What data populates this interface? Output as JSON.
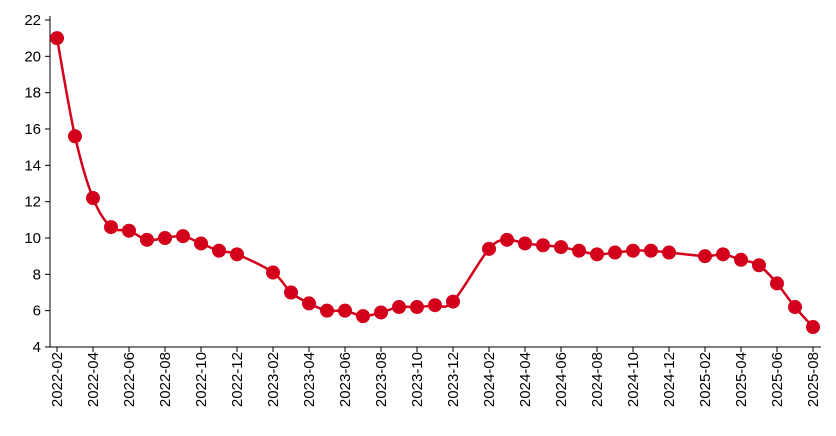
{
  "chart_data": {
    "type": "line",
    "x": [
      "2022-02",
      "2022-03",
      "2022-04",
      "2022-05",
      "2022-06",
      "2022-07",
      "2022-08",
      "2022-09",
      "2022-10",
      "2022-11",
      "2022-12",
      "2023-02",
      "2023-03",
      "2023-04",
      "2023-05",
      "2023-06",
      "2023-07",
      "2023-08",
      "2023-09",
      "2023-10",
      "2023-11",
      "2023-12",
      "2024-02",
      "2024-03",
      "2024-04",
      "2024-05",
      "2024-06",
      "2024-07",
      "2024-08",
      "2024-09",
      "2024-10",
      "2024-11",
      "2024-12",
      "2025-02",
      "2025-03",
      "2025-04",
      "2025-05",
      "2025-06",
      "2025-07",
      "2025-08"
    ],
    "series": [
      {
        "color": "#d2001a",
        "values": [
          21,
          15.6,
          12.2,
          10.6,
          10.4,
          9.9,
          10.0,
          10.1,
          9.7,
          9.3,
          9.1,
          8.1,
          7.0,
          6.4,
          6.0,
          6.0,
          5.7,
          5.9,
          6.2,
          6.2,
          6.3,
          6.5,
          9.4,
          9.9,
          9.7,
          9.6,
          9.5,
          9.3,
          9.1,
          9.2,
          9.3,
          9.3,
          9.2,
          9.0,
          9.1,
          8.8,
          8.5,
          7.5,
          6.2,
          5.1
        ]
      }
    ],
    "xlim": [
      "2022-02",
      "2025-08"
    ],
    "xticks": [
      "2022-02",
      "2022-04",
      "2022-06",
      "2022-08",
      "2022-10",
      "2022-12",
      "2023-02",
      "2023-04",
      "2023-06",
      "2023-08",
      "2023-10",
      "2023-12",
      "2024-02",
      "2024-04",
      "2024-06",
      "2024-08",
      "2024-10",
      "2024-12",
      "2025-02",
      "2025-04",
      "2025-06",
      "2025-08"
    ],
    "ylim": [
      4,
      22
    ],
    "yticks": [
      4,
      6,
      8,
      10,
      12,
      14,
      16,
      18,
      20,
      22
    ]
  }
}
